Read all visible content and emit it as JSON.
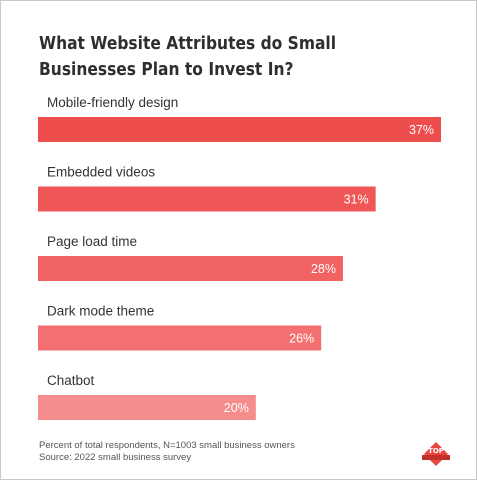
{
  "chart_data": {
    "type": "bar",
    "orientation": "horizontal",
    "title": "What Website Attributes do Small Businesses Plan to Invest In?",
    "categories": [
      "Mobile-friendly design",
      "Embedded videos",
      "Page load time",
      "Dark mode theme",
      "Chatbot"
    ],
    "values": [
      37,
      31,
      28,
      26,
      20
    ],
    "value_labels": [
      "37%",
      "31%",
      "28%",
      "26%",
      "20%"
    ],
    "bar_colors": [
      "#ed4d4d",
      "#ef5757",
      "#f16262",
      "#f47070",
      "#f68d8d"
    ],
    "xlim": [
      0,
      37
    ],
    "grid": false,
    "legend": "none"
  },
  "footnote": {
    "line1": "Percent of total respondents, N=1003 small business owners",
    "line2": "Source: 2022 small business survey"
  },
  "logo": {
    "text": "TOP",
    "color": "#e8463f",
    "icon": "top-badge-icon"
  }
}
